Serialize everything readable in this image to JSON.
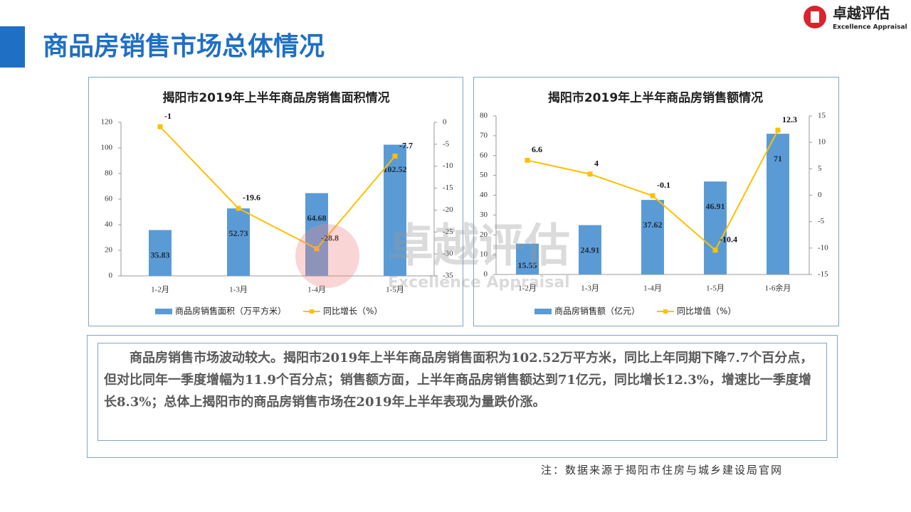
{
  "header": {
    "title": "商品房销售市场总体情况",
    "logo_cn": "卓越评估",
    "logo_en": "Excellence Appraisal",
    "watermark_cn": "卓越评估",
    "watermark_en": "Excellence Appraisal"
  },
  "chart_data": [
    {
      "type": "bar",
      "title": "揭阳市2019年上半年商品房销售面积情况",
      "categories": [
        "1-2月",
        "1-3月",
        "1-4月",
        "1-5月"
      ],
      "series": [
        {
          "name": "商品房销售面积（万平方米）",
          "color": "#5b9bd5",
          "values": [
            35.83,
            52.73,
            64.68,
            102.52
          ]
        },
        {
          "name": "同比增长（%）",
          "color": "#ffc000",
          "type": "line",
          "axis": "y2",
          "values": [
            -1,
            -19.6,
            -28.8,
            -7.7
          ]
        }
      ],
      "ylim": [
        0,
        120
      ],
      "yticks": [
        0,
        20,
        40,
        60,
        80,
        100,
        120
      ],
      "y2lim": [
        -35,
        0
      ],
      "y2ticks": [
        -35,
        -30,
        -25,
        -20,
        -15,
        -10,
        -5,
        0
      ],
      "legend": "bottom"
    },
    {
      "type": "bar",
      "title": "揭阳市2019年上半年商品房销售额情况",
      "categories": [
        "1-2月",
        "1-3月",
        "1-4月",
        "1-5月",
        "1-6余月"
      ],
      "series": [
        {
          "name": "商品房销售额（亿元）",
          "color": "#5b9bd5",
          "values": [
            15.55,
            24.91,
            37.62,
            46.91,
            71
          ]
        },
        {
          "name": "同比增值（%）",
          "color": "#ffc000",
          "type": "line",
          "axis": "y2",
          "values": [
            6.6,
            4,
            -0.1,
            -10.4,
            12.3
          ]
        }
      ],
      "ylim": [
        0,
        80
      ],
      "yticks": [
        0,
        10,
        20,
        30,
        40,
        50,
        60,
        70,
        80
      ],
      "y2lim": [
        -15,
        15
      ],
      "y2ticks": [
        -15,
        -10,
        -5,
        0,
        5,
        10,
        15
      ],
      "legend": "bottom"
    }
  ],
  "text": {
    "paragraph": "商品房销售市场波动较大。揭阳市2019年上半年商品房销售面积为102.52万平方米，同比上年同期下降7.7个百分点，但对比同年一季度增幅为11.9个百分点；销售额方面，上半年商品房销售额达到71亿元，同比增长12.3%，增速比一季度增长8.3%；总体上揭阳市的商品房销售市场在2019年上半年表现为量跌价涨。",
    "note": "注：数据来源于揭阳市住房与城乡建设局官网"
  }
}
